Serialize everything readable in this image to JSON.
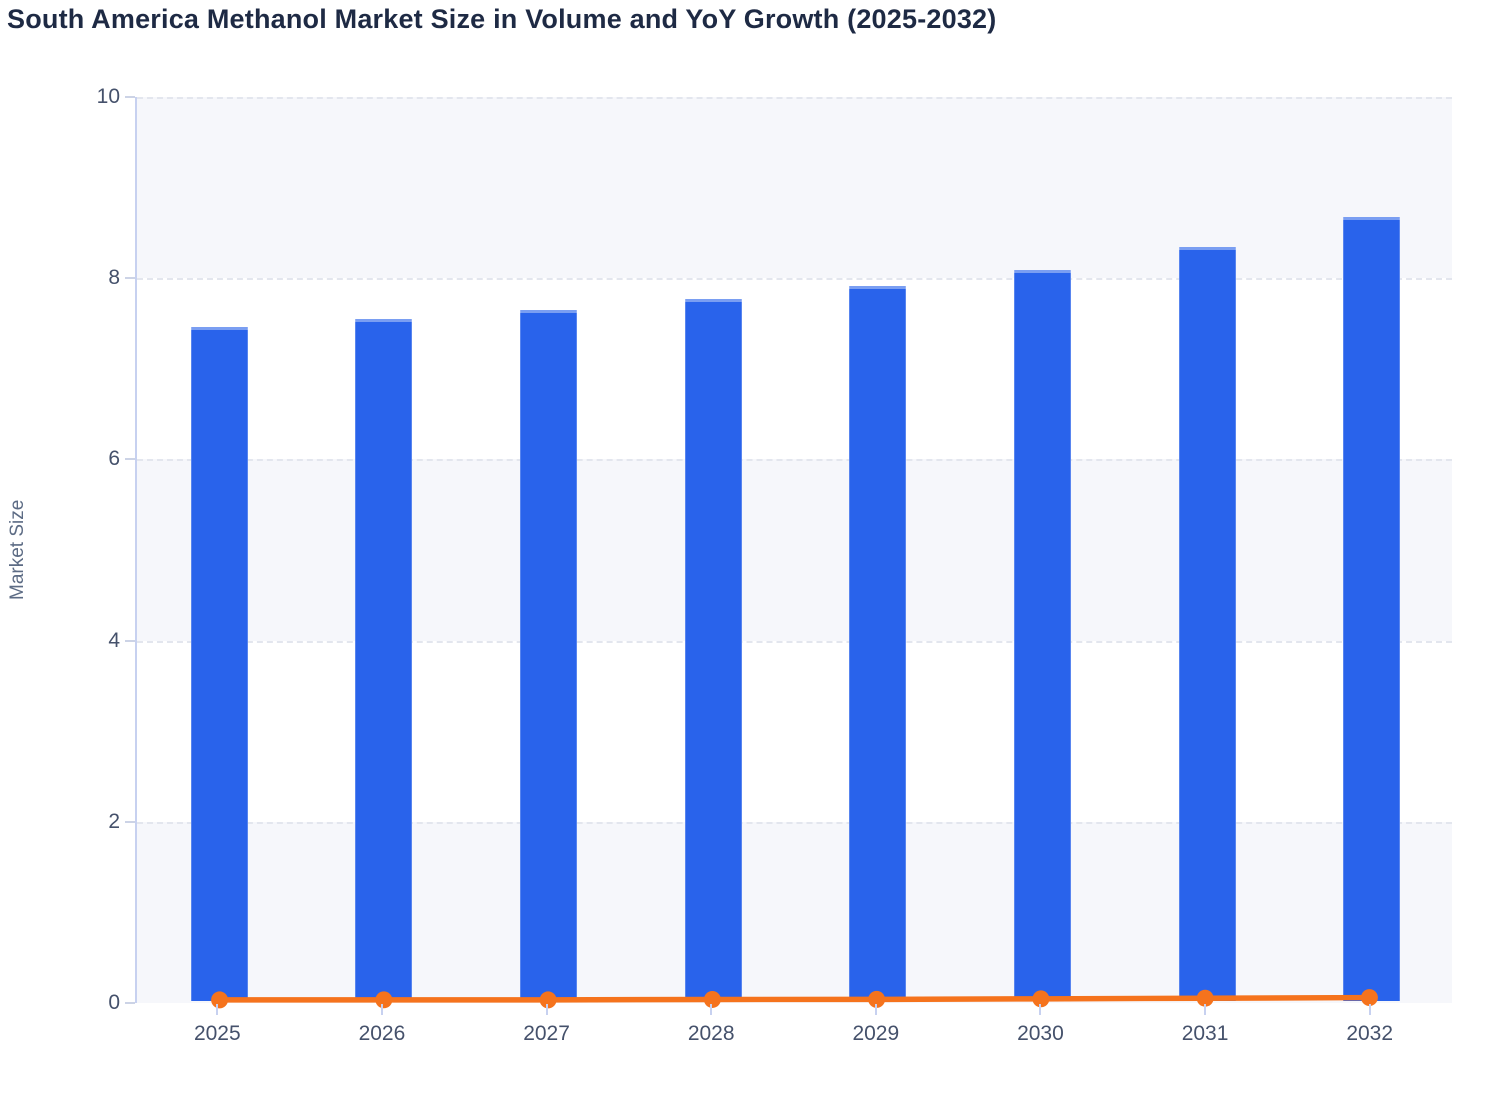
{
  "chart_data": {
    "type": "bar",
    "title": "South America Methanol Market Size in Volume and YoY Growth (2025-2032)",
    "xlabel": "",
    "ylabel": "Market Size",
    "categories": [
      "2025",
      "2026",
      "2027",
      "2028",
      "2029",
      "2030",
      "2031",
      "2032"
    ],
    "series": [
      {
        "name": "Market Size in Volume",
        "type": "bar",
        "values": [
          7.44,
          7.53,
          7.63,
          7.75,
          7.89,
          8.07,
          8.32,
          8.65
        ]
      },
      {
        "name": "YoY Growth",
        "type": "line",
        "values": [
          0.012,
          0.013,
          0.012,
          0.017,
          0.018,
          0.024,
          0.031,
          0.038
        ]
      }
    ],
    "ylim": [
      0,
      10
    ],
    "yticks": [
      0,
      2,
      4,
      6,
      8,
      10
    ],
    "grid": "horizontal-dashed",
    "legend_position": "none",
    "plot_bands": "alternating"
  },
  "colors": {
    "bar": "#2963eb",
    "line": "#f5731d",
    "band": "#f6f7fb",
    "grid": "#e3e6ee",
    "axis": "#c7d1f0",
    "title_text": "#1e2a44",
    "tick_text": "#45516b"
  }
}
